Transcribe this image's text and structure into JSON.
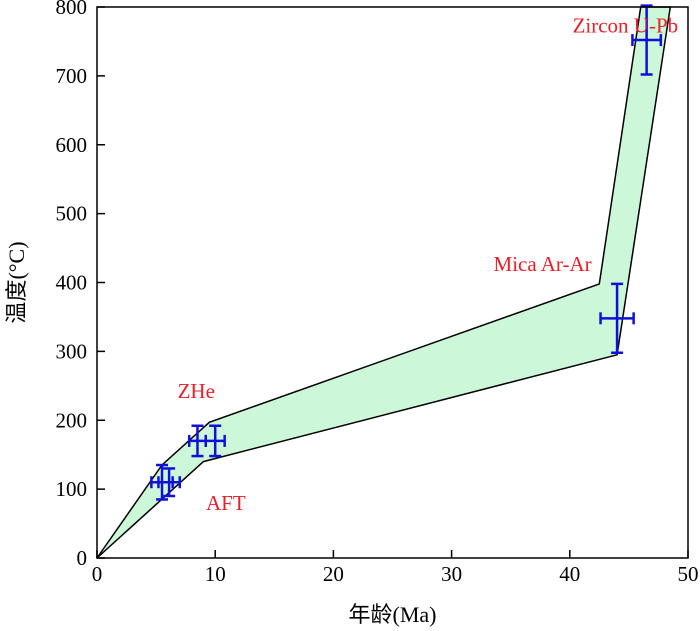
{
  "chart_data": {
    "type": "area",
    "xlabel": "年龄(Ma)",
    "ylabel": "温度(°C)",
    "xlim": [
      0,
      50
    ],
    "ylim": [
      0,
      800
    ],
    "x_ticks": [
      0,
      10,
      20,
      30,
      40,
      50
    ],
    "y_ticks": [
      0,
      100,
      200,
      300,
      400,
      500,
      600,
      700,
      800
    ],
    "grid": false,
    "envelope": {
      "fill": "#ccf7d9",
      "stroke": "#000000",
      "upper": [
        [
          0,
          0
        ],
        [
          5.5,
          135
        ],
        [
          9.5,
          197
        ],
        [
          42.5,
          398
        ],
        [
          46,
          800
        ]
      ],
      "lower": [
        [
          48.5,
          800
        ],
        [
          44,
          295
        ],
        [
          9,
          140
        ],
        [
          0,
          0
        ]
      ]
    },
    "points": [
      {
        "name": "AFT",
        "x": 5.5,
        "y": 110,
        "xerr": 0.9,
        "yerr": 25
      },
      {
        "name": "AFT",
        "x": 6.1,
        "y": 110,
        "xerr": 0.9,
        "yerr": 20
      },
      {
        "name": "ZHe",
        "x": 8.5,
        "y": 170,
        "xerr": 0.7,
        "yerr": 22
      },
      {
        "name": "ZHe",
        "x": 10.0,
        "y": 170,
        "xerr": 0.8,
        "yerr": 22
      },
      {
        "name": "Mica Ar-Ar",
        "x": 44.0,
        "y": 348,
        "xerr": 1.4,
        "yerr": 50
      },
      {
        "name": "Zircon U-Pb",
        "x": 46.5,
        "y": 752,
        "xerr": 1.2,
        "yerr": 50
      }
    ],
    "point_color": "#1010d8",
    "annotations": [
      {
        "text": "Zircon U-Pb",
        "x": 44.7,
        "y": 763,
        "color": "#e8202a"
      },
      {
        "text": "Mica Ar-Ar",
        "x": 37.7,
        "y": 417,
        "color": "#e8202a"
      },
      {
        "text": "ZHe",
        "x": 8.4,
        "y": 232,
        "color": "#e8202a"
      },
      {
        "text": "AFT",
        "x": 10.9,
        "y": 70,
        "color": "#e8202a"
      }
    ]
  }
}
